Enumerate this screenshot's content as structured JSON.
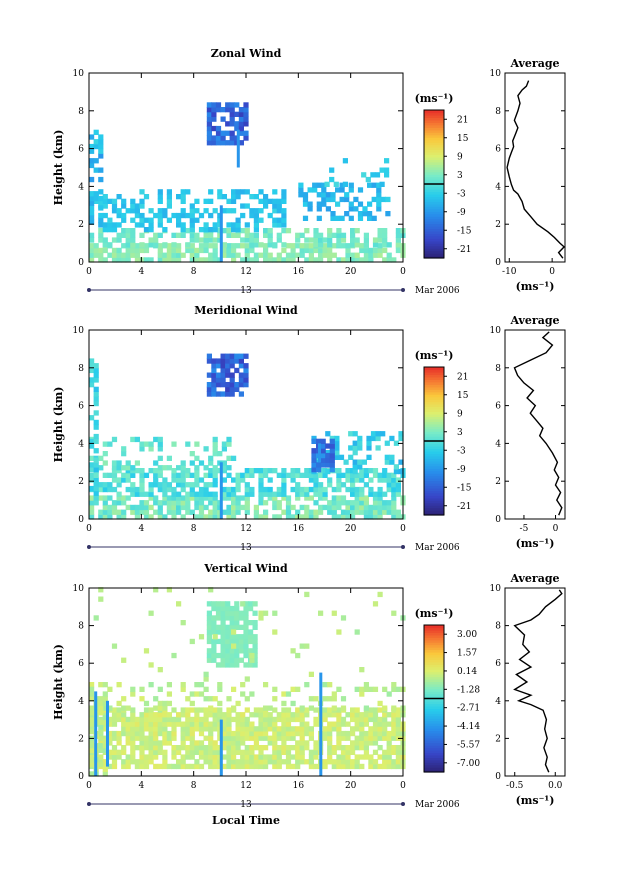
{
  "date_label": "Mar 2006",
  "day_label": "13",
  "xlabel_bottom": "Local Time",
  "ylabel": "Height (km)",
  "profile_title": "Average",
  "unit_label": "(ms⁻¹)",
  "chart_data": [
    {
      "type": "heatmap",
      "title": "Zonal Wind",
      "xlabel": "",
      "ylabel": "Height (km)",
      "x_ticks": [
        "0",
        "4",
        "8",
        "12",
        "16",
        "20",
        "0"
      ],
      "x_range": [
        0,
        24
      ],
      "y_ticks": [
        "0",
        "2",
        "4",
        "6",
        "8",
        "10"
      ],
      "y_range": [
        0,
        10
      ],
      "colorbar_ticks": [
        "21",
        "15",
        "9",
        "3",
        "-3",
        "-9",
        "-15",
        "-21"
      ],
      "colorbar_range": [
        -24,
        24
      ],
      "profile": {
        "title": "Average",
        "x_ticks": [
          "-10",
          "0"
        ],
        "x_range": [
          -11,
          3
        ],
        "xlabel": "(ms⁻¹)",
        "y_ticks": [
          "0",
          "2",
          "4",
          "6",
          "8",
          "10"
        ],
        "heights": [
          0.2,
          0.5,
          0.8,
          1.0,
          1.3,
          1.6,
          2.0,
          2.4,
          2.8,
          3.2,
          3.6,
          3.8,
          4.1,
          4.5,
          5.0,
          5.5,
          5.8,
          6.1,
          6.4,
          6.8,
          7.1,
          7.5,
          8.0,
          8.4,
          8.8,
          9.1,
          9.3,
          9.6
        ],
        "values": [
          2.5,
          1.5,
          2.8,
          1.8,
          0.5,
          -1.0,
          -3.5,
          -5.0,
          -6.5,
          -7.0,
          -8.0,
          -9.0,
          -9.5,
          -10.0,
          -10.5,
          -10.0,
          -9.5,
          -9.0,
          -9.2,
          -8.5,
          -8.0,
          -8.8,
          -8.0,
          -7.5,
          -8.0,
          -7.0,
          -6.0,
          -5.5
        ]
      }
    },
    {
      "type": "heatmap",
      "title": "Meridional Wind",
      "xlabel": "",
      "ylabel": "Height (km)",
      "x_ticks": [
        "0",
        "4",
        "8",
        "12",
        "16",
        "20",
        "0"
      ],
      "x_range": [
        0,
        24
      ],
      "y_ticks": [
        "0",
        "2",
        "4",
        "6",
        "8",
        "10"
      ],
      "y_range": [
        0,
        10
      ],
      "colorbar_ticks": [
        "21",
        "15",
        "9",
        "3",
        "-3",
        "-9",
        "-15",
        "-21"
      ],
      "colorbar_range": [
        -24,
        24
      ],
      "profile": {
        "title": "Average",
        "x_ticks": [
          "-5",
          "0"
        ],
        "x_range": [
          -8,
          1.5
        ],
        "xlabel": "(ms⁻¹)",
        "y_ticks": [
          "0",
          "2",
          "4",
          "6",
          "8",
          "10"
        ],
        "heights": [
          0.2,
          0.6,
          1.0,
          1.4,
          1.8,
          2.2,
          2.6,
          3.0,
          3.5,
          4.0,
          4.4,
          4.8,
          5.2,
          5.6,
          6.0,
          6.4,
          6.8,
          7.2,
          7.6,
          8.0,
          8.4,
          8.8,
          9.2,
          9.6,
          9.9
        ],
        "values": [
          0.5,
          1.0,
          0.2,
          0.8,
          0.0,
          0.5,
          -0.2,
          0.3,
          -0.5,
          -1.5,
          -2.5,
          -2.0,
          -3.0,
          -4.0,
          -3.2,
          -4.5,
          -3.5,
          -5.0,
          -6.0,
          -6.5,
          -4.0,
          -1.5,
          -0.5,
          -2.0,
          -1.0
        ]
      }
    },
    {
      "type": "heatmap",
      "title": "Vertical Wind",
      "xlabel": "Local Time",
      "ylabel": "Height (km)",
      "x_ticks": [
        "0",
        "4",
        "8",
        "12",
        "16",
        "20",
        "0"
      ],
      "x_range": [
        0,
        24
      ],
      "y_ticks": [
        "0",
        "2",
        "4",
        "6",
        "8",
        "10"
      ],
      "y_range": [
        0,
        10
      ],
      "colorbar_ticks": [
        "3.00",
        "1.57",
        "0.14",
        "-1.28",
        "-2.71",
        "-4.14",
        "-5.57",
        "-7.00"
      ],
      "colorbar_range": [
        -7.7,
        3.7
      ],
      "profile": {
        "title": "Average",
        "x_ticks": [
          "-0.5",
          "0.0"
        ],
        "x_range": [
          -0.62,
          0.12
        ],
        "xlabel": "(ms⁻¹)",
        "y_ticks": [
          "0",
          "2",
          "4",
          "6",
          "8",
          "10"
        ],
        "heights": [
          0.2,
          0.6,
          1.0,
          1.5,
          2.0,
          2.5,
          3.0,
          3.5,
          3.8,
          4.0,
          4.3,
          4.6,
          5.0,
          5.4,
          5.8,
          6.2,
          6.6,
          7.0,
          7.5,
          8.0,
          8.3,
          8.6,
          9.0,
          9.4,
          9.7,
          9.9
        ],
        "values": [
          -0.08,
          -0.12,
          -0.1,
          -0.14,
          -0.1,
          -0.13,
          -0.11,
          -0.15,
          -0.3,
          -0.45,
          -0.3,
          -0.5,
          -0.35,
          -0.48,
          -0.3,
          -0.44,
          -0.32,
          -0.4,
          -0.38,
          -0.5,
          -0.3,
          -0.2,
          -0.12,
          0.0,
          0.08,
          0.05
        ]
      }
    }
  ]
}
